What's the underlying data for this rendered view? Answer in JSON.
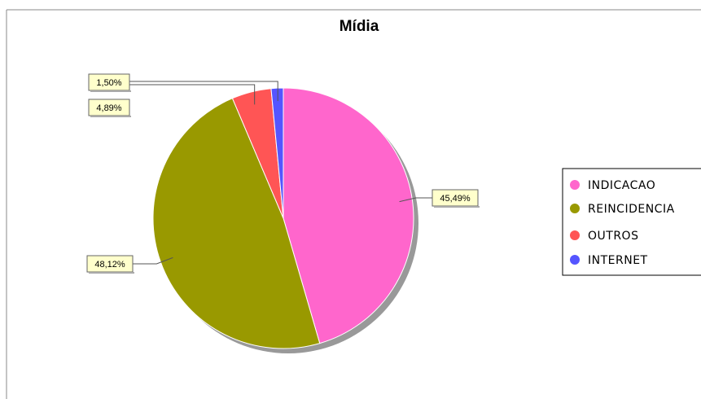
{
  "chart_data": {
    "type": "pie",
    "title": "Mídia",
    "slices": [
      {
        "name": "INDICACAO",
        "value": 45.49,
        "label": "45,49%",
        "color": "#ff66cc"
      },
      {
        "name": "REINCIDENCIA",
        "value": 48.12,
        "label": "48,12%",
        "color": "#999900"
      },
      {
        "name": "OUTROS",
        "value": 4.89,
        "label": "4,89%",
        "color": "#ff5555"
      },
      {
        "name": "INTERNET",
        "value": 1.5,
        "label": "1,50%",
        "color": "#5555ff"
      }
    ],
    "legend_position": "right"
  }
}
